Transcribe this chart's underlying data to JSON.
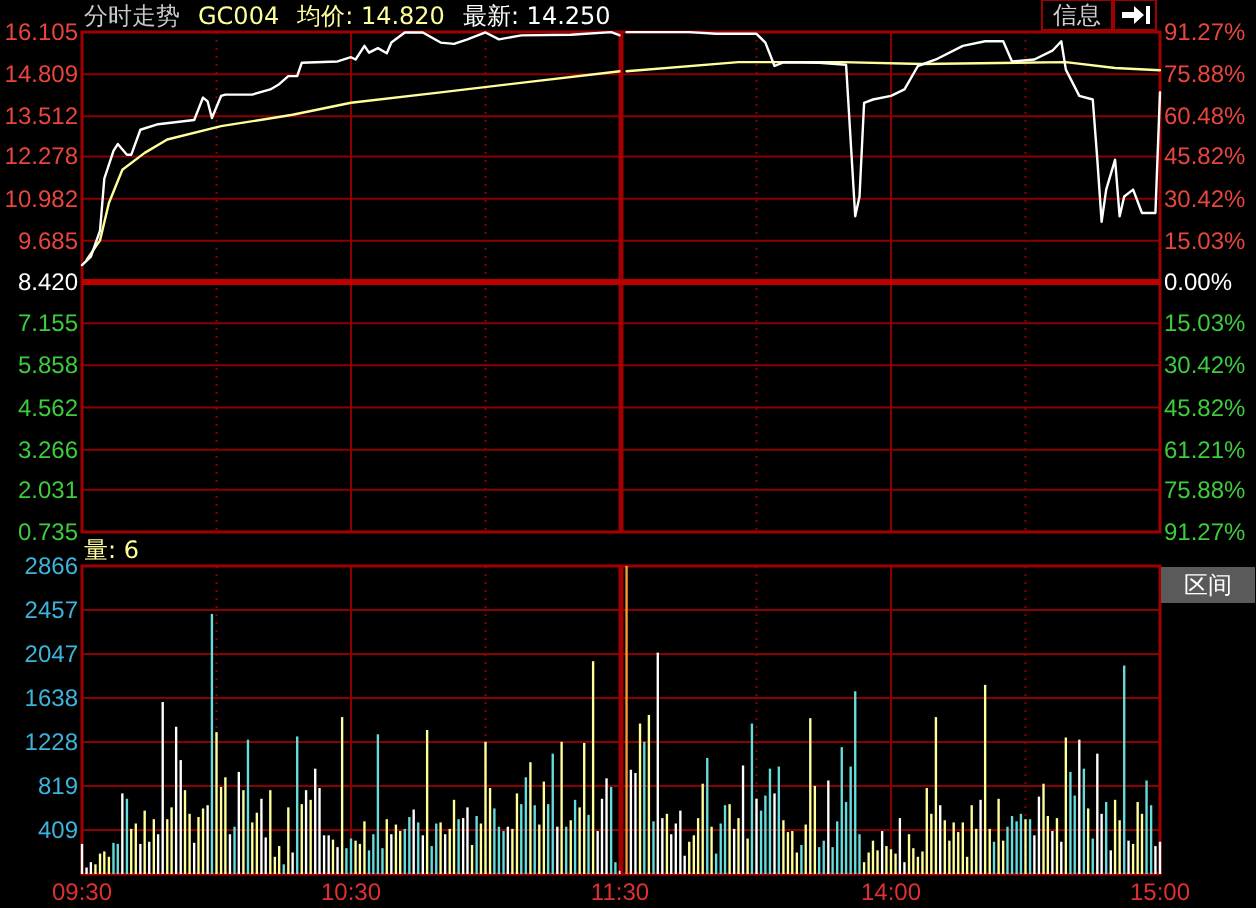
{
  "chart_data": [
    {
      "type": "line",
      "title": "分时走势",
      "subtitle": "GC004",
      "legend": "top right",
      "grid": true,
      "tick_labels": "y",
      "xlim": [
        9.5,
        11.5
      ],
      "xticks": [
        {
          "value": 10,
          "label": null
        },
        {
          "value": 10.5,
          "label": null
        },
        {
          "value": 11,
          "label": null
        }
      ],
      "ylim": [
        0.735,
        16.105
      ],
      "yticks": [
        16.105,
        14.809,
        13.512,
        12.278,
        10.982,
        9.685,
        {
          "value": 8.42,
          "label": "8.420"
        },
        7.155,
        5.858,
        4.562,
        3.266,
        2.031,
        0.735
      ],
      "ref_lines": [
        {
          "axis": "y",
          "value": 8.42,
          "color": "#c00000"
        }
      ],
      "series": [
        {
          "name": "均价: 14.820",
          "color": "#ffff99",
          "x": [
            9.517,
            9.567,
            9.6,
            9.65,
            9.733,
            9.817,
            10.017,
            10.283,
            10.5,
            10.833,
            11.5
          ],
          "values": [
            9.1,
            9.7,
            10.85,
            11.87,
            12.39,
            12.8,
            13.21,
            13.56,
            13.93,
            14.25,
            14.9
          ]
        },
        {
          "name": "最新: 14.250",
          "color": "#ffffff",
          "x": [
            9.5,
            9.533,
            9.567,
            9.583,
            9.617,
            9.633,
            9.667,
            9.683,
            9.717,
            9.783,
            9.917,
            9.95,
            9.967,
            9.983,
            10.017,
            10.033,
            10.133,
            10.2,
            10.233,
            10.267,
            10.3,
            10.317,
            10.45,
            10.5,
            10.517,
            10.55,
            10.567,
            10.6,
            10.633,
            10.65,
            10.7,
            10.767,
            10.833,
            10.883,
            10.933,
            11,
            11.05,
            11.133,
            11.317,
            11.467,
            11.5
          ],
          "values": [
            8.94,
            9.2,
            10.0,
            11.6,
            12.45,
            12.66,
            12.33,
            12.33,
            13.1,
            13.27,
            13.4,
            14.09,
            13.97,
            13.46,
            14.14,
            14.18,
            14.18,
            14.34,
            14.5,
            14.75,
            14.75,
            15.16,
            15.2,
            15.33,
            15.26,
            15.68,
            15.47,
            15.61,
            15.45,
            15.78,
            16.09,
            16.09,
            15.78,
            15.74,
            15.88,
            16.09,
            15.88,
            16.0,
            16.02,
            16.1,
            16.0
          ]
        }
      ]
    },
    {
      "type": "line",
      "annotations": [
        "信息"
      ],
      "grid": true,
      "tick_labels": "y",
      "xlim": [
        13,
        15
      ],
      "xticks": [
        {
          "value": 13.5,
          "label": null
        },
        {
          "value": 14,
          "label": null
        },
        {
          "value": 14.5,
          "label": null
        }
      ],
      "ylim": [
        0.735,
        16.105
      ],
      "y2lim": [
        -91.27,
        91.27
      ],
      "y2ticks": [
        {
          "value": 91.27,
          "label": "91.27%"
        },
        {
          "value": 75.88,
          "label": "75.88%"
        },
        {
          "value": 60.48,
          "label": "60.48%"
        },
        {
          "value": 45.82,
          "label": "45.82%"
        },
        {
          "value": 30.42,
          "label": "30.42%"
        },
        {
          "value": 15.03,
          "label": "15.03%"
        },
        {
          "value": 0,
          "label": "0.00%"
        },
        {
          "value": -15.03,
          "label": "15.03%"
        },
        {
          "value": -30.42,
          "label": "30.42%"
        },
        {
          "value": -45.82,
          "label": "45.82%"
        },
        {
          "value": -61.21,
          "label": "61.21%"
        },
        {
          "value": -75.88,
          "label": "75.88%"
        },
        {
          "value": -91.27,
          "label": "91.27%"
        }
      ],
      "ref_lines": [
        {
          "axis": "y",
          "value": 8.42,
          "color": "#c00000"
        }
      ],
      "series": [
        {
          "color": "#ffff99",
          "x": [
            13.017,
            13.433,
            13.817,
            14.117,
            14.65,
            14.833,
            15
          ],
          "values": [
            14.9,
            15.18,
            15.18,
            15.12,
            15.18,
            15.0,
            14.93
          ]
        },
        {
          "color": "#ffffff",
          "x": [
            13.017,
            13.25,
            13.35,
            13.5,
            13.533,
            13.567,
            13.6,
            13.733,
            13.833,
            13.867,
            13.883,
            13.9,
            13.933,
            14,
            14.05,
            14.1,
            14.167,
            14.267,
            14.35,
            14.417,
            14.45,
            14.533,
            14.6,
            14.633,
            14.65,
            14.7,
            14.75,
            14.767,
            14.783,
            14.8,
            14.833,
            14.85,
            14.867,
            14.9,
            14.933,
            14.983,
            15
          ],
          "values": [
            16.1,
            16.1,
            16.05,
            16.05,
            15.78,
            15.06,
            15.17,
            15.16,
            15.1,
            10.44,
            11.05,
            13.93,
            14.03,
            14.14,
            14.34,
            15.06,
            15.26,
            15.68,
            15.82,
            15.82,
            15.2,
            15.26,
            15.53,
            15.82,
            14.95,
            14.14,
            14.03,
            12.18,
            10.27,
            11.26,
            12.18,
            10.44,
            11.05,
            11.26,
            10.54,
            10.54,
            14.25
          ]
        }
      ]
    },
    {
      "type": "bar",
      "title": "量: 6",
      "grid": true,
      "xlim": [
        9.5,
        11.5
      ],
      "xticks": [
        {
          "value": 9.5,
          "label": "09:30"
        },
        {
          "value": 10,
          "label": null
        },
        {
          "value": 10.5,
          "label": "10:30"
        },
        {
          "value": 11,
          "label": null
        },
        {
          "value": 11.5,
          "label": "11:30"
        }
      ],
      "ylim": [
        0,
        2866
      ],
      "yticks": [
        409,
        819,
        1228,
        1638,
        2047,
        2457,
        2866
      ],
      "x": [
        9.5,
        9.517,
        9.533,
        9.55,
        9.567,
        9.583,
        9.6,
        9.617,
        9.633,
        9.65,
        9.667,
        9.683,
        9.7,
        9.717,
        9.733,
        9.75,
        9.767,
        9.783,
        9.8,
        9.817,
        9.833,
        9.85,
        9.867,
        9.883,
        9.9,
        9.917,
        9.933,
        9.95,
        9.967,
        9.983,
        10,
        10.017,
        10.033,
        10.05,
        10.067,
        10.083,
        10.1,
        10.117,
        10.133,
        10.15,
        10.167,
        10.183,
        10.2,
        10.217,
        10.233,
        10.25,
        10.267,
        10.283,
        10.3,
        10.317,
        10.333,
        10.35,
        10.367,
        10.383,
        10.4,
        10.417,
        10.433,
        10.45,
        10.467,
        10.483,
        10.5,
        10.517,
        10.533,
        10.55,
        10.567,
        10.583,
        10.6,
        10.617,
        10.633,
        10.65,
        10.667,
        10.683,
        10.7,
        10.717,
        10.733,
        10.75,
        10.767,
        10.783,
        10.8,
        10.817,
        10.833,
        10.85,
        10.867,
        10.883,
        10.9,
        10.917,
        10.933,
        10.95,
        10.967,
        10.983,
        11,
        11.017,
        11.033,
        11.05,
        11.067,
        11.083,
        11.1,
        11.117,
        11.133,
        11.15,
        11.167,
        11.183,
        11.2,
        11.217,
        11.233,
        11.25,
        11.267,
        11.283,
        11.3,
        11.317,
        11.333,
        11.35,
        11.367,
        11.383,
        11.4,
        11.417,
        11.433,
        11.45,
        11.467,
        11.483,
        11.5
      ],
      "values": [
        280,
        60,
        110,
        90,
        190,
        210,
        160,
        290,
        280,
        750,
        700,
        420,
        470,
        280,
        590,
        300,
        510,
        370,
        1600,
        510,
        620,
        1370,
        1060,
        780,
        560,
        290,
        530,
        610,
        640,
        2420,
        1320,
        810,
        900,
        370,
        440,
        950,
        780,
        1250,
        480,
        570,
        700,
        340,
        780,
        160,
        260,
        90,
        620,
        200,
        1280,
        650,
        780,
        690,
        980,
        800,
        360,
        360,
        320,
        250,
        1460,
        240,
        330,
        310,
        280,
        490,
        220,
        370,
        1300,
        240,
        510,
        370,
        460,
        400,
        420,
        530,
        600,
        480,
        360,
        1340,
        260,
        470,
        480,
        370,
        420,
        690,
        510,
        520,
        620,
        270,
        540,
        470,
        1230,
        800,
        610,
        440,
        400,
        440,
        420,
        750,
        650,
        900,
        1040,
        640,
        460,
        860,
        650,
        1120,
        440,
        1230,
        440,
        500,
        690,
        620,
        1220,
        550,
        1980,
        400,
        700,
        890,
        810,
        110,
        30
      ],
      "colors": [
        "#ffffff",
        "#ffffff",
        "#ffffff",
        "#ffff99",
        "#ffff99",
        "#ffff99",
        "#ffff99",
        "#66dddd",
        "#66dddd",
        "#ffffff",
        "#66dddd",
        "#ffff99",
        "#ffff99",
        "#ffffff",
        "#ffff99",
        "#ffffff",
        "#ffff99",
        "#ffffff",
        "#ffffff",
        "#ffff99",
        "#ffff99",
        "#ffffff",
        "#ffffff",
        "#ffff99",
        "#ffff99",
        "#ffffff",
        "#ffff99",
        "#ffff99",
        "#ffffff",
        "#66dddd",
        "#ffff99",
        "#ffff99",
        "#ffff99",
        "#ffffff",
        "#66dddd",
        "#ffffff",
        "#ffff99",
        "#66dddd",
        "#ffff99",
        "#ffff99",
        "#ffffff",
        "#ffffff",
        "#ffff99",
        "#ffff99",
        "#ffff99",
        "#66dddd",
        "#ffff99",
        "#ffffff",
        "#66dddd",
        "#ffff99",
        "#ffffff",
        "#ffff99",
        "#ffffff",
        "#ffffff",
        "#ffffff",
        "#ffffff",
        "#ffff99",
        "#ffffff",
        "#ffff99",
        "#66dddd",
        "#66dddd",
        "#ffff99",
        "#ffff99",
        "#ffff99",
        "#66dddd",
        "#66dddd",
        "#66dddd",
        "#66dddd",
        "#ffff99",
        "#ffffff",
        "#ffff99",
        "#ffff99",
        "#66dddd",
        "#66dddd",
        "#ffffff",
        "#66dddd",
        "#ffffff",
        "#ffff99",
        "#66dddd",
        "#66dddd",
        "#ffff99",
        "#ffffff",
        "#ffff99",
        "#ffff99",
        "#66dddd",
        "#ffffff",
        "#ffffff",
        "#ffff99",
        "#66dddd",
        "#ffff99",
        "#ffff99",
        "#ffff99",
        "#66dddd",
        "#66dddd",
        "#66dddd",
        "#ffffff",
        "#ffff99",
        "#ffff99",
        "#66dddd",
        "#66dddd",
        "#ffff99",
        "#66dddd",
        "#ffff99",
        "#ffff99",
        "#66dddd",
        "#66dddd",
        "#ffffff",
        "#ffff99",
        "#66dddd",
        "#ffff99",
        "#66dddd",
        "#ffff99",
        "#ffff99",
        "#66dddd",
        "#ffff99",
        "#ffffff",
        "#ffffff",
        "#ffffff",
        "#66dddd",
        "#66dddd",
        "#ffffff"
      ]
    },
    {
      "type": "bar",
      "annotations": [
        "区间"
      ],
      "grid": true,
      "tick_labels": "x",
      "xlim": [
        13,
        15
      ],
      "xticks": [
        {
          "value": 13.5,
          "label": null
        },
        {
          "value": 14,
          "label": "14:00"
        },
        {
          "value": 14.5,
          "label": null
        },
        {
          "value": 15,
          "label": "15:00"
        }
      ],
      "ylim": [
        0,
        2866
      ],
      "yticks": [
        {
          "value": 409,
          "label": null
        },
        {
          "value": 819,
          "label": null
        },
        {
          "value": 1228,
          "label": null
        },
        {
          "value": 1638,
          "label": null
        },
        {
          "value": 2047,
          "label": null
        },
        {
          "value": 2457,
          "label": null
        },
        {
          "value": 2866,
          "label": null
        }
      ],
      "x": [
        13.017,
        13.033,
        13.05,
        13.067,
        13.083,
        13.1,
        13.117,
        13.133,
        13.15,
        13.167,
        13.183,
        13.2,
        13.217,
        13.233,
        13.25,
        13.267,
        13.283,
        13.3,
        13.317,
        13.333,
        13.35,
        13.367,
        13.383,
        13.4,
        13.417,
        13.433,
        13.45,
        13.467,
        13.483,
        13.5,
        13.517,
        13.533,
        13.55,
        13.567,
        13.583,
        13.6,
        13.617,
        13.633,
        13.65,
        13.667,
        13.683,
        13.7,
        13.717,
        13.733,
        13.75,
        13.767,
        13.783,
        13.8,
        13.817,
        13.833,
        13.85,
        13.867,
        13.883,
        13.9,
        13.917,
        13.933,
        13.95,
        13.967,
        13.983,
        14,
        14.017,
        14.033,
        14.05,
        14.067,
        14.083,
        14.1,
        14.117,
        14.133,
        14.15,
        14.167,
        14.183,
        14.2,
        14.217,
        14.233,
        14.25,
        14.267,
        14.283,
        14.3,
        14.317,
        14.333,
        14.35,
        14.367,
        14.383,
        14.4,
        14.417,
        14.433,
        14.45,
        14.467,
        14.483,
        14.5,
        14.517,
        14.533,
        14.55,
        14.567,
        14.583,
        14.6,
        14.617,
        14.633,
        14.65,
        14.667,
        14.683,
        14.7,
        14.717,
        14.733,
        14.75,
        14.767,
        14.783,
        14.8,
        14.817,
        14.833,
        14.85,
        14.867,
        14.883,
        14.9,
        14.917,
        14.933,
        14.95,
        14.967,
        14.983,
        15
      ],
      "values": [
        2866,
        970,
        940,
        1400,
        1230,
        1480,
        490,
        2060,
        520,
        560,
        370,
        470,
        590,
        170,
        300,
        360,
        520,
        840,
        1080,
        440,
        190,
        470,
        640,
        650,
        420,
        520,
        1010,
        330,
        1400,
        700,
        590,
        730,
        980,
        750,
        1000,
        500,
        390,
        400,
        200,
        270,
        460,
        1450,
        820,
        250,
        310,
        870,
        250,
        490,
        1180,
        670,
        1000,
        1700,
        370,
        110,
        200,
        310,
        220,
        400,
        260,
        230,
        190,
        520,
        110,
        370,
        240,
        160,
        210,
        800,
        560,
        1460,
        640,
        500,
        310,
        480,
        390,
        480,
        160,
        640,
        420,
        690,
        1760,
        420,
        300,
        700,
        310,
        440,
        540,
        490,
        560,
        510,
        510,
        360,
        720,
        840,
        540,
        400,
        520,
        300,
        1270,
        950,
        730,
        1250,
        980,
        610,
        330,
        1120,
        560,
        670,
        220,
        690,
        500,
        1940,
        310,
        280,
        670,
        560,
        870,
        640,
        260,
        300
      ],
      "colors": [
        "#ff9933",
        "#ffffff",
        "#ffffff",
        "#ffff99",
        "#66dddd",
        "#ffff99",
        "#66dddd",
        "#ffffff",
        "#ffffff",
        "#ffff99",
        "#ffffff",
        "#ffffff",
        "#ffffff",
        "#ffffff",
        "#ffff99",
        "#ffff99",
        "#ffff99",
        "#ffff99",
        "#66dddd",
        "#ffff99",
        "#66dddd",
        "#66dddd",
        "#66dddd",
        "#ffff99",
        "#ffffff",
        "#ffff99",
        "#ffffff",
        "#ffff99",
        "#66dddd",
        "#ffffff",
        "#66dddd",
        "#66dddd",
        "#66dddd",
        "#ffffff",
        "#66dddd",
        "#ffff99",
        "#ffff99",
        "#ffff99",
        "#ffff99",
        "#66dddd",
        "#ffff99",
        "#ffff99",
        "#ffff99",
        "#66dddd",
        "#66dddd",
        "#ffffff",
        "#66dddd",
        "#66dddd",
        "#66dddd",
        "#66dddd",
        "#66dddd",
        "#66dddd",
        "#66dddd",
        "#ffff99",
        "#ffff99",
        "#ffff99",
        "#ffff99",
        "#ffffff",
        "#ffff99",
        "#ffff99",
        "#ffff99",
        "#ffffff",
        "#ffffff",
        "#ffff99",
        "#ffff99",
        "#ffff99",
        "#ffff99",
        "#ffff99",
        "#ffff99",
        "#ffff99",
        "#ffffff",
        "#ffff99",
        "#ffff99",
        "#ffff99",
        "#ffff99",
        "#ffff99",
        "#ffff99",
        "#ffff99",
        "#ffff99",
        "#ffffff",
        "#ffff99",
        "#ffff99",
        "#66dddd",
        "#ffff99",
        "#ffff99",
        "#66dddd",
        "#66dddd",
        "#66dddd",
        "#66dddd",
        "#ffff99",
        "#66dddd",
        "#ffffff",
        "#ffffff",
        "#ffff99",
        "#ffff99",
        "#ffffff",
        "#ffff99",
        "#ffffff",
        "#ffff99",
        "#66dddd",
        "#66dddd",
        "#ffffff",
        "#66dddd",
        "#ffff99",
        "#66dddd",
        "#ffffff",
        "#ffffff",
        "#66dddd",
        "#ffffff",
        "#ffff99",
        "#ffff99",
        "#66dddd",
        "#ffffff",
        "#ffff99",
        "#ffff99",
        "#ffff99",
        "#66dddd",
        "#66dddd",
        "#ffffff",
        "#ffffff"
      ]
    }
  ]
}
